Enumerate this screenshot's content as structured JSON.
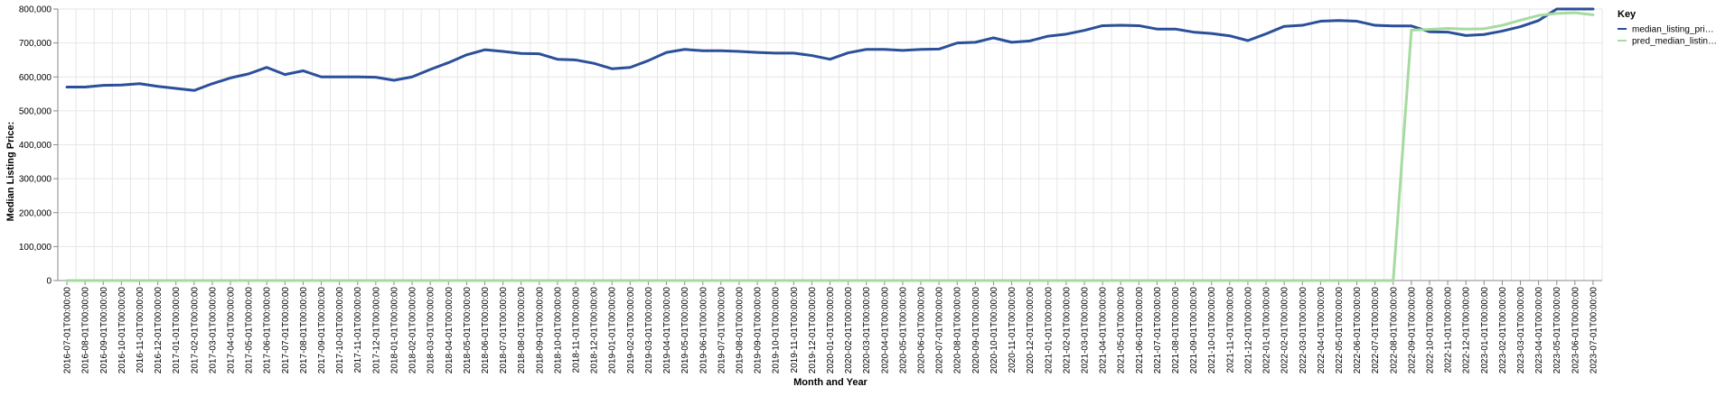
{
  "chart_data": {
    "type": "line",
    "title": "",
    "xlabel": "Month and Year",
    "ylabel": "Median Listing Price:",
    "ylim": [
      0,
      800000
    ],
    "yticks": [
      0,
      100000,
      200000,
      300000,
      400000,
      500000,
      600000,
      700000,
      800000
    ],
    "ytick_labels": [
      "0",
      "100,000",
      "200,000",
      "300,000",
      "400,000",
      "500,000",
      "600,000",
      "700,000",
      "800,000"
    ],
    "grid": true,
    "legend": {
      "title": "Key",
      "placement": "right",
      "entries": [
        {
          "label": "median_listing_pri…",
          "color": "#2b4f99"
        },
        {
          "label": "pred_median_listin…",
          "color": "#a6dba0"
        }
      ]
    },
    "categories": [
      "2016-07-01T00:00:00",
      "2016-08-01T00:00:00",
      "2016-09-01T00:00:00",
      "2016-10-01T00:00:00",
      "2016-11-01T00:00:00",
      "2016-12-01T00:00:00",
      "2017-01-01T00:00:00",
      "2017-02-01T00:00:00",
      "2017-03-01T00:00:00",
      "2017-04-01T00:00:00",
      "2017-05-01T00:00:00",
      "2017-06-01T00:00:00",
      "2017-07-01T00:00:00",
      "2017-08-01T00:00:00",
      "2017-09-01T00:00:00",
      "2017-10-01T00:00:00",
      "2017-11-01T00:00:00",
      "2017-12-01T00:00:00",
      "2018-01-01T00:00:00",
      "2018-02-01T00:00:00",
      "2018-03-01T00:00:00",
      "2018-04-01T00:00:00",
      "2018-05-01T00:00:00",
      "2018-06-01T00:00:00",
      "2018-07-01T00:00:00",
      "2018-08-01T00:00:00",
      "2018-09-01T00:00:00",
      "2018-10-01T00:00:00",
      "2018-11-01T00:00:00",
      "2018-12-01T00:00:00",
      "2019-01-01T00:00:00",
      "2019-02-01T00:00:00",
      "2019-03-01T00:00:00",
      "2019-04-01T00:00:00",
      "2019-05-01T00:00:00",
      "2019-06-01T00:00:00",
      "2019-07-01T00:00:00",
      "2019-08-01T00:00:00",
      "2019-09-01T00:00:00",
      "2019-10-01T00:00:00",
      "2019-11-01T00:00:00",
      "2019-12-01T00:00:00",
      "2020-01-01T00:00:00",
      "2020-02-01T00:00:00",
      "2020-03-01T00:00:00",
      "2020-04-01T00:00:00",
      "2020-05-01T00:00:00",
      "2020-06-01T00:00:00",
      "2020-07-01T00:00:00",
      "2020-08-01T00:00:00",
      "2020-09-01T00:00:00",
      "2020-10-01T00:00:00",
      "2020-11-01T00:00:00",
      "2020-12-01T00:00:00",
      "2021-01-01T00:00:00",
      "2021-02-01T00:00:00",
      "2021-03-01T00:00:00",
      "2021-04-01T00:00:00",
      "2021-05-01T00:00:00",
      "2021-06-01T00:00:00",
      "2021-07-01T00:00:00",
      "2021-08-01T00:00:00",
      "2021-09-01T00:00:00",
      "2021-10-01T00:00:00",
      "2021-11-01T00:00:00",
      "2021-12-01T00:00:00",
      "2022-01-01T00:00:00",
      "2022-02-01T00:00:00",
      "2022-03-01T00:00:00",
      "2022-04-01T00:00:00",
      "2022-05-01T00:00:00",
      "2022-06-01T00:00:00",
      "2022-07-01T00:00:00",
      "2022-08-01T00:00:00",
      "2022-09-01T00:00:00",
      "2022-10-01T00:00:00",
      "2022-11-01T00:00:00",
      "2022-12-01T00:00:00",
      "2023-01-01T00:00:00",
      "2023-02-01T00:00:00",
      "2023-03-01T00:00:00",
      "2023-04-01T00:00:00",
      "2023-05-01T00:00:00",
      "2023-06-01T00:00:00",
      "2023-07-01T00:00:00"
    ],
    "series": [
      {
        "name": "median_listing_pri…",
        "color": "#2b4f99",
        "values": [
          570000,
          570000,
          575000,
          576000,
          580000,
          572000,
          566000,
          560000,
          580000,
          597000,
          609000,
          628000,
          607000,
          618000,
          600000,
          600000,
          600000,
          599000,
          590000,
          600000,
          622000,
          642000,
          665000,
          680000,
          675000,
          669000,
          668000,
          652000,
          650000,
          640000,
          624000,
          628000,
          648000,
          672000,
          681000,
          677000,
          677000,
          675000,
          672000,
          670000,
          670000,
          663000,
          652000,
          671000,
          681000,
          681000,
          678000,
          681000,
          682000,
          700000,
          702000,
          715000,
          702000,
          706000,
          720000,
          726000,
          737000,
          751000,
          752000,
          751000,
          741000,
          741000,
          732000,
          728000,
          721000,
          707000,
          727000,
          749000,
          752000,
          764000,
          766000,
          764000,
          752000,
          750000,
          750000,
          733000,
          732000,
          722000,
          725000,
          735000,
          748000,
          766000,
          800000,
          800000,
          800000
        ]
      },
      {
        "name": "pred_median_listin…",
        "color": "#a6dba0",
        "values": [
          0,
          0,
          0,
          0,
          0,
          0,
          0,
          0,
          0,
          0,
          0,
          0,
          0,
          0,
          0,
          0,
          0,
          0,
          0,
          0,
          0,
          0,
          0,
          0,
          0,
          0,
          0,
          0,
          0,
          0,
          0,
          0,
          0,
          0,
          0,
          0,
          0,
          0,
          0,
          0,
          0,
          0,
          0,
          0,
          0,
          0,
          0,
          0,
          0,
          0,
          0,
          0,
          0,
          0,
          0,
          0,
          0,
          0,
          0,
          0,
          0,
          0,
          0,
          0,
          0,
          0,
          0,
          0,
          0,
          0,
          0,
          0,
          0,
          0,
          738000,
          740000,
          743000,
          741000,
          742000,
          752000,
          767000,
          781000,
          787000,
          789000,
          783000
        ]
      }
    ]
  }
}
